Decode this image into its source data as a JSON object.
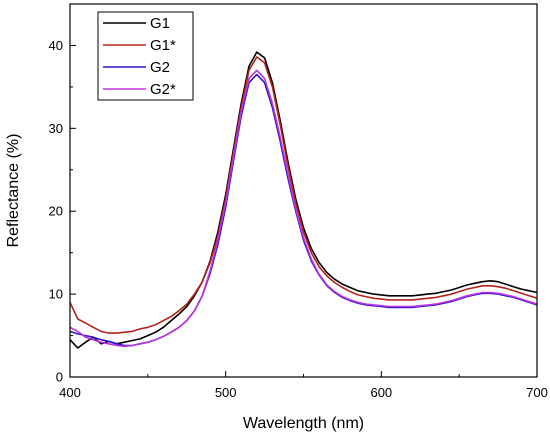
{
  "chart_data": {
    "type": "line",
    "title": "",
    "xlabel": "Wavelength (nm)",
    "ylabel": "Reflectance (%)",
    "xlim": [
      400,
      700
    ],
    "ylim": [
      0,
      45
    ],
    "x_ticks": [
      400,
      500,
      600,
      700
    ],
    "y_ticks": [
      0,
      10,
      20,
      30,
      40
    ],
    "grid": false,
    "legend_position": "top-left",
    "series": [
      {
        "name": "G1",
        "color": "#000000",
        "points": [
          [
            400,
            4.5
          ],
          [
            405,
            3.5
          ],
          [
            410,
            4.2
          ],
          [
            415,
            4.8
          ],
          [
            420,
            4.0
          ],
          [
            425,
            4.3
          ],
          [
            430,
            4.0
          ],
          [
            435,
            4.2
          ],
          [
            440,
            4.4
          ],
          [
            445,
            4.6
          ],
          [
            450,
            5.0
          ],
          [
            455,
            5.4
          ],
          [
            460,
            6.0
          ],
          [
            465,
            6.8
          ],
          [
            470,
            7.6
          ],
          [
            475,
            8.5
          ],
          [
            480,
            9.8
          ],
          [
            485,
            11.5
          ],
          [
            490,
            14.0
          ],
          [
            495,
            17.5
          ],
          [
            500,
            22.0
          ],
          [
            505,
            27.5
          ],
          [
            510,
            33.0
          ],
          [
            515,
            37.5
          ],
          [
            520,
            39.2
          ],
          [
            525,
            38.5
          ],
          [
            530,
            35.5
          ],
          [
            535,
            31.0
          ],
          [
            540,
            26.0
          ],
          [
            545,
            21.5
          ],
          [
            550,
            18.0
          ],
          [
            555,
            15.5
          ],
          [
            560,
            13.8
          ],
          [
            565,
            12.6
          ],
          [
            570,
            11.8
          ],
          [
            575,
            11.2
          ],
          [
            580,
            10.8
          ],
          [
            585,
            10.4
          ],
          [
            590,
            10.2
          ],
          [
            595,
            10.0
          ],
          [
            600,
            9.9
          ],
          [
            605,
            9.8
          ],
          [
            610,
            9.8
          ],
          [
            615,
            9.8
          ],
          [
            620,
            9.8
          ],
          [
            625,
            9.9
          ],
          [
            630,
            10.0
          ],
          [
            635,
            10.1
          ],
          [
            640,
            10.3
          ],
          [
            645,
            10.5
          ],
          [
            650,
            10.8
          ],
          [
            655,
            11.1
          ],
          [
            660,
            11.3
          ],
          [
            665,
            11.5
          ],
          [
            670,
            11.6
          ],
          [
            675,
            11.5
          ],
          [
            680,
            11.2
          ],
          [
            685,
            10.9
          ],
          [
            690,
            10.6
          ],
          [
            695,
            10.4
          ],
          [
            700,
            10.2
          ]
        ]
      },
      {
        "name": "G1*",
        "color": "#b5231a",
        "points": [
          [
            400,
            9.0
          ],
          [
            405,
            7.0
          ],
          [
            410,
            6.5
          ],
          [
            415,
            6.0
          ],
          [
            420,
            5.5
          ],
          [
            425,
            5.3
          ],
          [
            430,
            5.3
          ],
          [
            435,
            5.4
          ],
          [
            440,
            5.5
          ],
          [
            445,
            5.8
          ],
          [
            450,
            6.0
          ],
          [
            455,
            6.3
          ],
          [
            460,
            6.8
          ],
          [
            465,
            7.3
          ],
          [
            470,
            8.0
          ],
          [
            475,
            8.8
          ],
          [
            480,
            10.0
          ],
          [
            485,
            11.5
          ],
          [
            490,
            13.8
          ],
          [
            495,
            17.0
          ],
          [
            500,
            21.5
          ],
          [
            505,
            27.0
          ],
          [
            510,
            32.5
          ],
          [
            515,
            37.0
          ],
          [
            520,
            38.6
          ],
          [
            525,
            37.9
          ],
          [
            530,
            35.0
          ],
          [
            535,
            30.5
          ],
          [
            540,
            25.5
          ],
          [
            545,
            21.0
          ],
          [
            550,
            17.5
          ],
          [
            555,
            15.0
          ],
          [
            560,
            13.3
          ],
          [
            565,
            12.2
          ],
          [
            570,
            11.4
          ],
          [
            575,
            10.8
          ],
          [
            580,
            10.3
          ],
          [
            585,
            9.9
          ],
          [
            590,
            9.7
          ],
          [
            595,
            9.5
          ],
          [
            600,
            9.4
          ],
          [
            605,
            9.3
          ],
          [
            610,
            9.3
          ],
          [
            615,
            9.3
          ],
          [
            620,
            9.3
          ],
          [
            625,
            9.4
          ],
          [
            630,
            9.5
          ],
          [
            635,
            9.6
          ],
          [
            640,
            9.8
          ],
          [
            645,
            10.0
          ],
          [
            650,
            10.3
          ],
          [
            655,
            10.6
          ],
          [
            660,
            10.8
          ],
          [
            665,
            11.0
          ],
          [
            670,
            11.0
          ],
          [
            675,
            10.9
          ],
          [
            680,
            10.7
          ],
          [
            685,
            10.4
          ],
          [
            690,
            10.1
          ],
          [
            695,
            9.8
          ],
          [
            700,
            9.5
          ]
        ]
      },
      {
        "name": "G2",
        "color": "#2d16cc",
        "points": [
          [
            400,
            5.5
          ],
          [
            405,
            5.2
          ],
          [
            410,
            5.0
          ],
          [
            415,
            4.8
          ],
          [
            420,
            4.5
          ],
          [
            425,
            4.3
          ],
          [
            430,
            4.0
          ],
          [
            435,
            3.8
          ],
          [
            440,
            3.8
          ],
          [
            445,
            4.0
          ],
          [
            450,
            4.2
          ],
          [
            455,
            4.5
          ],
          [
            460,
            4.9
          ],
          [
            465,
            5.4
          ],
          [
            470,
            6.0
          ],
          [
            475,
            6.8
          ],
          [
            480,
            8.0
          ],
          [
            485,
            9.8
          ],
          [
            490,
            12.5
          ],
          [
            495,
            16.0
          ],
          [
            500,
            20.5
          ],
          [
            505,
            26.0
          ],
          [
            510,
            31.5
          ],
          [
            515,
            35.5
          ],
          [
            520,
            36.5
          ],
          [
            525,
            35.5
          ],
          [
            530,
            32.5
          ],
          [
            535,
            28.5
          ],
          [
            540,
            24.0
          ],
          [
            545,
            20.0
          ],
          [
            550,
            16.5
          ],
          [
            555,
            14.0
          ],
          [
            560,
            12.3
          ],
          [
            565,
            11.0
          ],
          [
            570,
            10.2
          ],
          [
            575,
            9.6
          ],
          [
            580,
            9.2
          ],
          [
            585,
            8.9
          ],
          [
            590,
            8.7
          ],
          [
            595,
            8.6
          ],
          [
            600,
            8.5
          ],
          [
            605,
            8.4
          ],
          [
            610,
            8.4
          ],
          [
            615,
            8.4
          ],
          [
            620,
            8.4
          ],
          [
            625,
            8.5
          ],
          [
            630,
            8.6
          ],
          [
            635,
            8.7
          ],
          [
            640,
            8.9
          ],
          [
            645,
            9.1
          ],
          [
            650,
            9.4
          ],
          [
            655,
            9.7
          ],
          [
            660,
            9.9
          ],
          [
            665,
            10.1
          ],
          [
            670,
            10.1
          ],
          [
            675,
            10.0
          ],
          [
            680,
            9.8
          ],
          [
            685,
            9.6
          ],
          [
            690,
            9.3
          ],
          [
            695,
            9.0
          ],
          [
            700,
            8.7
          ]
        ]
      },
      {
        "name": "G2*",
        "color": "#bb33dd",
        "points": [
          [
            400,
            6.0
          ],
          [
            405,
            5.5
          ],
          [
            410,
            4.8
          ],
          [
            415,
            4.5
          ],
          [
            420,
            4.2
          ],
          [
            425,
            4.0
          ],
          [
            430,
            3.8
          ],
          [
            435,
            3.7
          ],
          [
            440,
            3.8
          ],
          [
            445,
            4.0
          ],
          [
            450,
            4.2
          ],
          [
            455,
            4.5
          ],
          [
            460,
            4.9
          ],
          [
            465,
            5.4
          ],
          [
            470,
            6.0
          ],
          [
            475,
            6.8
          ],
          [
            480,
            8.0
          ],
          [
            485,
            9.8
          ],
          [
            490,
            12.8
          ],
          [
            495,
            16.5
          ],
          [
            500,
            21.0
          ],
          [
            505,
            26.5
          ],
          [
            510,
            32.0
          ],
          [
            515,
            36.0
          ],
          [
            520,
            37.0
          ],
          [
            525,
            36.0
          ],
          [
            530,
            33.0
          ],
          [
            535,
            29.0
          ],
          [
            540,
            24.5
          ],
          [
            545,
            20.3
          ],
          [
            550,
            16.8
          ],
          [
            555,
            14.2
          ],
          [
            560,
            12.4
          ],
          [
            565,
            11.1
          ],
          [
            570,
            10.3
          ],
          [
            575,
            9.7
          ],
          [
            580,
            9.3
          ],
          [
            585,
            9.0
          ],
          [
            590,
            8.8
          ],
          [
            595,
            8.7
          ],
          [
            600,
            8.6
          ],
          [
            605,
            8.5
          ],
          [
            610,
            8.5
          ],
          [
            615,
            8.5
          ],
          [
            620,
            8.5
          ],
          [
            625,
            8.6
          ],
          [
            630,
            8.7
          ],
          [
            635,
            8.8
          ],
          [
            640,
            9.0
          ],
          [
            645,
            9.2
          ],
          [
            650,
            9.5
          ],
          [
            655,
            9.8
          ],
          [
            660,
            10.0
          ],
          [
            665,
            10.2
          ],
          [
            670,
            10.2
          ],
          [
            675,
            10.1
          ],
          [
            680,
            9.9
          ],
          [
            685,
            9.7
          ],
          [
            690,
            9.4
          ],
          [
            695,
            9.1
          ],
          [
            700,
            8.8
          ]
        ]
      }
    ]
  }
}
